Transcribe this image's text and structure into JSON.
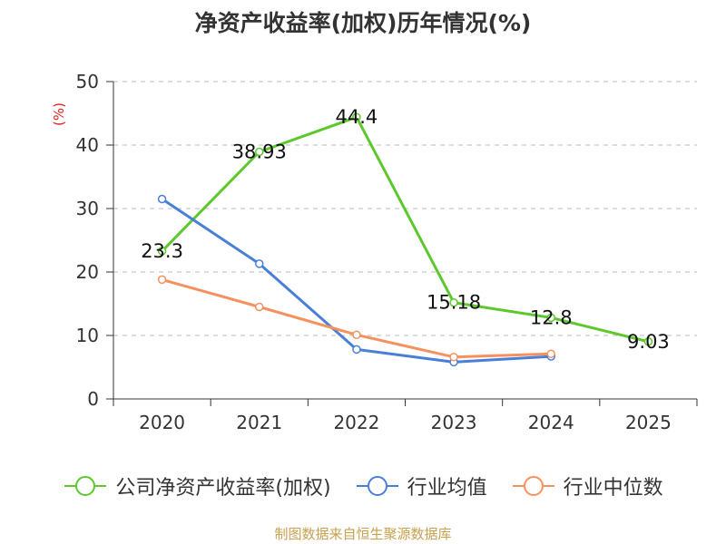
{
  "chart_data": {
    "type": "line",
    "title": "净资产收益率(加权)历年情况(%)",
    "ylabel": "(%)",
    "xlabel": "",
    "categories": [
      "2020",
      "2021",
      "2022",
      "2023",
      "2024",
      "2025"
    ],
    "ylim": [
      0,
      50
    ],
    "yticks": [
      0,
      10,
      20,
      30,
      40,
      50
    ],
    "grid": true,
    "legend_position": "bottom",
    "series": [
      {
        "name": "公司净资产收益率(加权)",
        "color": "#5cc82c",
        "values": [
          23.3,
          38.93,
          44.4,
          15.18,
          12.8,
          9.03
        ],
        "labels": [
          "23.3",
          "38.93",
          "44.4",
          "15.18",
          "12.8",
          "9.03"
        ]
      },
      {
        "name": "行业均值",
        "color": "#4a7fd8",
        "values": [
          31.5,
          21.3,
          7.8,
          5.8,
          6.7,
          null
        ]
      },
      {
        "name": "行业中位数",
        "color": "#f5915e",
        "values": [
          18.8,
          14.5,
          10.1,
          6.6,
          7.1,
          null
        ]
      }
    ]
  },
  "ylabel_color": "#e02020",
  "source": "制图数据来自恒生聚源数据库"
}
